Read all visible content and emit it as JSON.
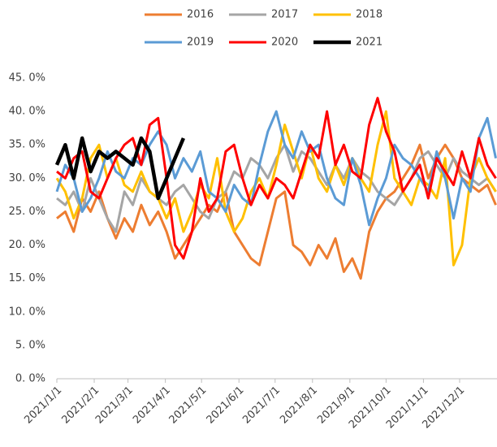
{
  "chart_data": {
    "type": "line",
    "x": [
      0,
      7,
      14,
      21,
      28,
      35,
      42,
      49,
      56,
      63,
      70,
      77,
      84,
      91,
      98,
      105,
      112,
      119,
      126,
      133,
      140,
      147,
      154,
      161,
      168,
      175,
      182,
      189,
      196,
      203,
      210,
      217,
      224,
      231,
      238,
      245,
      252,
      259,
      266,
      273,
      280,
      287,
      294,
      301,
      308,
      315,
      322,
      329,
      336,
      343,
      350,
      357,
      364
    ],
    "xlim": [
      0,
      365
    ],
    "xticks": [
      {
        "value": 0,
        "label": "2021/1/1"
      },
      {
        "value": 31,
        "label": "2021/2/1"
      },
      {
        "value": 59,
        "label": "2021/3/1"
      },
      {
        "value": 90,
        "label": "2021/4/1"
      },
      {
        "value": 120,
        "label": "2021/5/1"
      },
      {
        "value": 151,
        "label": "2021/6/1"
      },
      {
        "value": 181,
        "label": "2021/7/1"
      },
      {
        "value": 212,
        "label": "2021/8/1"
      },
      {
        "value": 243,
        "label": "2021/9/1"
      },
      {
        "value": 273,
        "label": "2021/10/1"
      },
      {
        "value": 304,
        "label": "2021/11/1"
      },
      {
        "value": 334,
        "label": "2021/12/1"
      }
    ],
    "ylim": [
      0,
      45
    ],
    "yticks": [
      {
        "value": 0,
        "label": "0. 0%"
      },
      {
        "value": 5,
        "label": "5. 0%"
      },
      {
        "value": 10,
        "label": "10. 0%"
      },
      {
        "value": 15,
        "label": "15. 0%"
      },
      {
        "value": 20,
        "label": "20. 0%"
      },
      {
        "value": 25,
        "label": "25. 0%"
      },
      {
        "value": 30,
        "label": "30. 0%"
      },
      {
        "value": 35,
        "label": "35. 0%"
      },
      {
        "value": 40,
        "label": "40. 0%"
      },
      {
        "value": 45,
        "label": "45. 0%"
      }
    ],
    "series": [
      {
        "name": "2016",
        "color": "#ED7D31",
        "values": [
          24,
          25,
          22,
          27,
          25,
          28,
          24,
          21,
          24,
          22,
          26,
          23,
          25,
          22,
          18,
          20,
          22,
          24,
          26,
          25,
          28,
          22,
          20,
          18,
          17,
          22,
          27,
          28,
          20,
          19,
          17,
          20,
          18,
          21,
          16,
          18,
          15,
          22,
          25,
          27,
          28,
          30,
          32,
          35,
          30,
          33,
          35,
          33,
          30,
          29,
          28,
          29,
          26
        ]
      },
      {
        "name": "2017",
        "color": "#A5A5A5",
        "values": [
          27,
          26,
          28,
          25,
          30,
          27,
          24,
          22,
          28,
          26,
          30,
          28,
          27,
          26,
          28,
          29,
          27,
          25,
          24,
          27,
          28,
          31,
          30,
          33,
          32,
          30,
          33,
          35,
          31,
          34,
          33,
          31,
          29,
          32,
          30,
          33,
          31,
          30,
          28,
          27,
          26,
          28,
          30,
          33,
          34,
          32,
          30,
          33,
          31,
          30,
          29,
          30,
          28
        ]
      },
      {
        "name": "2018",
        "color": "#FFC000",
        "values": [
          30,
          28,
          24,
          27,
          33,
          35,
          30,
          33,
          29,
          28,
          31,
          28,
          27,
          24,
          27,
          22,
          25,
          29,
          27,
          33,
          25,
          22,
          24,
          28,
          30,
          27,
          32,
          38,
          34,
          30,
          35,
          30,
          28,
          32,
          29,
          33,
          30,
          28,
          35,
          40,
          30,
          28,
          26,
          30,
          29,
          27,
          33,
          17,
          20,
          30,
          33,
          30,
          28
        ]
      },
      {
        "name": "2019",
        "color": "#5B9BD5",
        "values": [
          28,
          32,
          30,
          25,
          27,
          30,
          34,
          31,
          30,
          33,
          32,
          35,
          37,
          35,
          30,
          33,
          31,
          34,
          28,
          27,
          25,
          29,
          27,
          26,
          32,
          37,
          40,
          35,
          33,
          37,
          34,
          35,
          30,
          27,
          26,
          33,
          29,
          23,
          27,
          30,
          35,
          33,
          32,
          30,
          28,
          34,
          30,
          24,
          30,
          28,
          36,
          39,
          33
        ]
      },
      {
        "name": "2020",
        "color": "#FF0000",
        "values": [
          31,
          30,
          33,
          34,
          28,
          27,
          30,
          33,
          35,
          36,
          32,
          38,
          39,
          30,
          20,
          18,
          22,
          30,
          25,
          27,
          34,
          35,
          30,
          26,
          29,
          27,
          30,
          29,
          27,
          31,
          35,
          33,
          40,
          32,
          35,
          31,
          30,
          38,
          42,
          37,
          34,
          28,
          30,
          32,
          27,
          33,
          31,
          29,
          34,
          30,
          36,
          32,
          30
        ]
      },
      {
        "name": "2021",
        "color": "#000000",
        "values": [
          32,
          35,
          30,
          36,
          31,
          34,
          33,
          34,
          33,
          32,
          36,
          34,
          27,
          30,
          33,
          36,
          null,
          null,
          null,
          null,
          null,
          null,
          null,
          null,
          null,
          null,
          null,
          null,
          null,
          null,
          null,
          null,
          null,
          null,
          null,
          null,
          null,
          null,
          null,
          null,
          null,
          null,
          null,
          null,
          null,
          null,
          null,
          null,
          null,
          null,
          null,
          null,
          null
        ]
      }
    ]
  }
}
